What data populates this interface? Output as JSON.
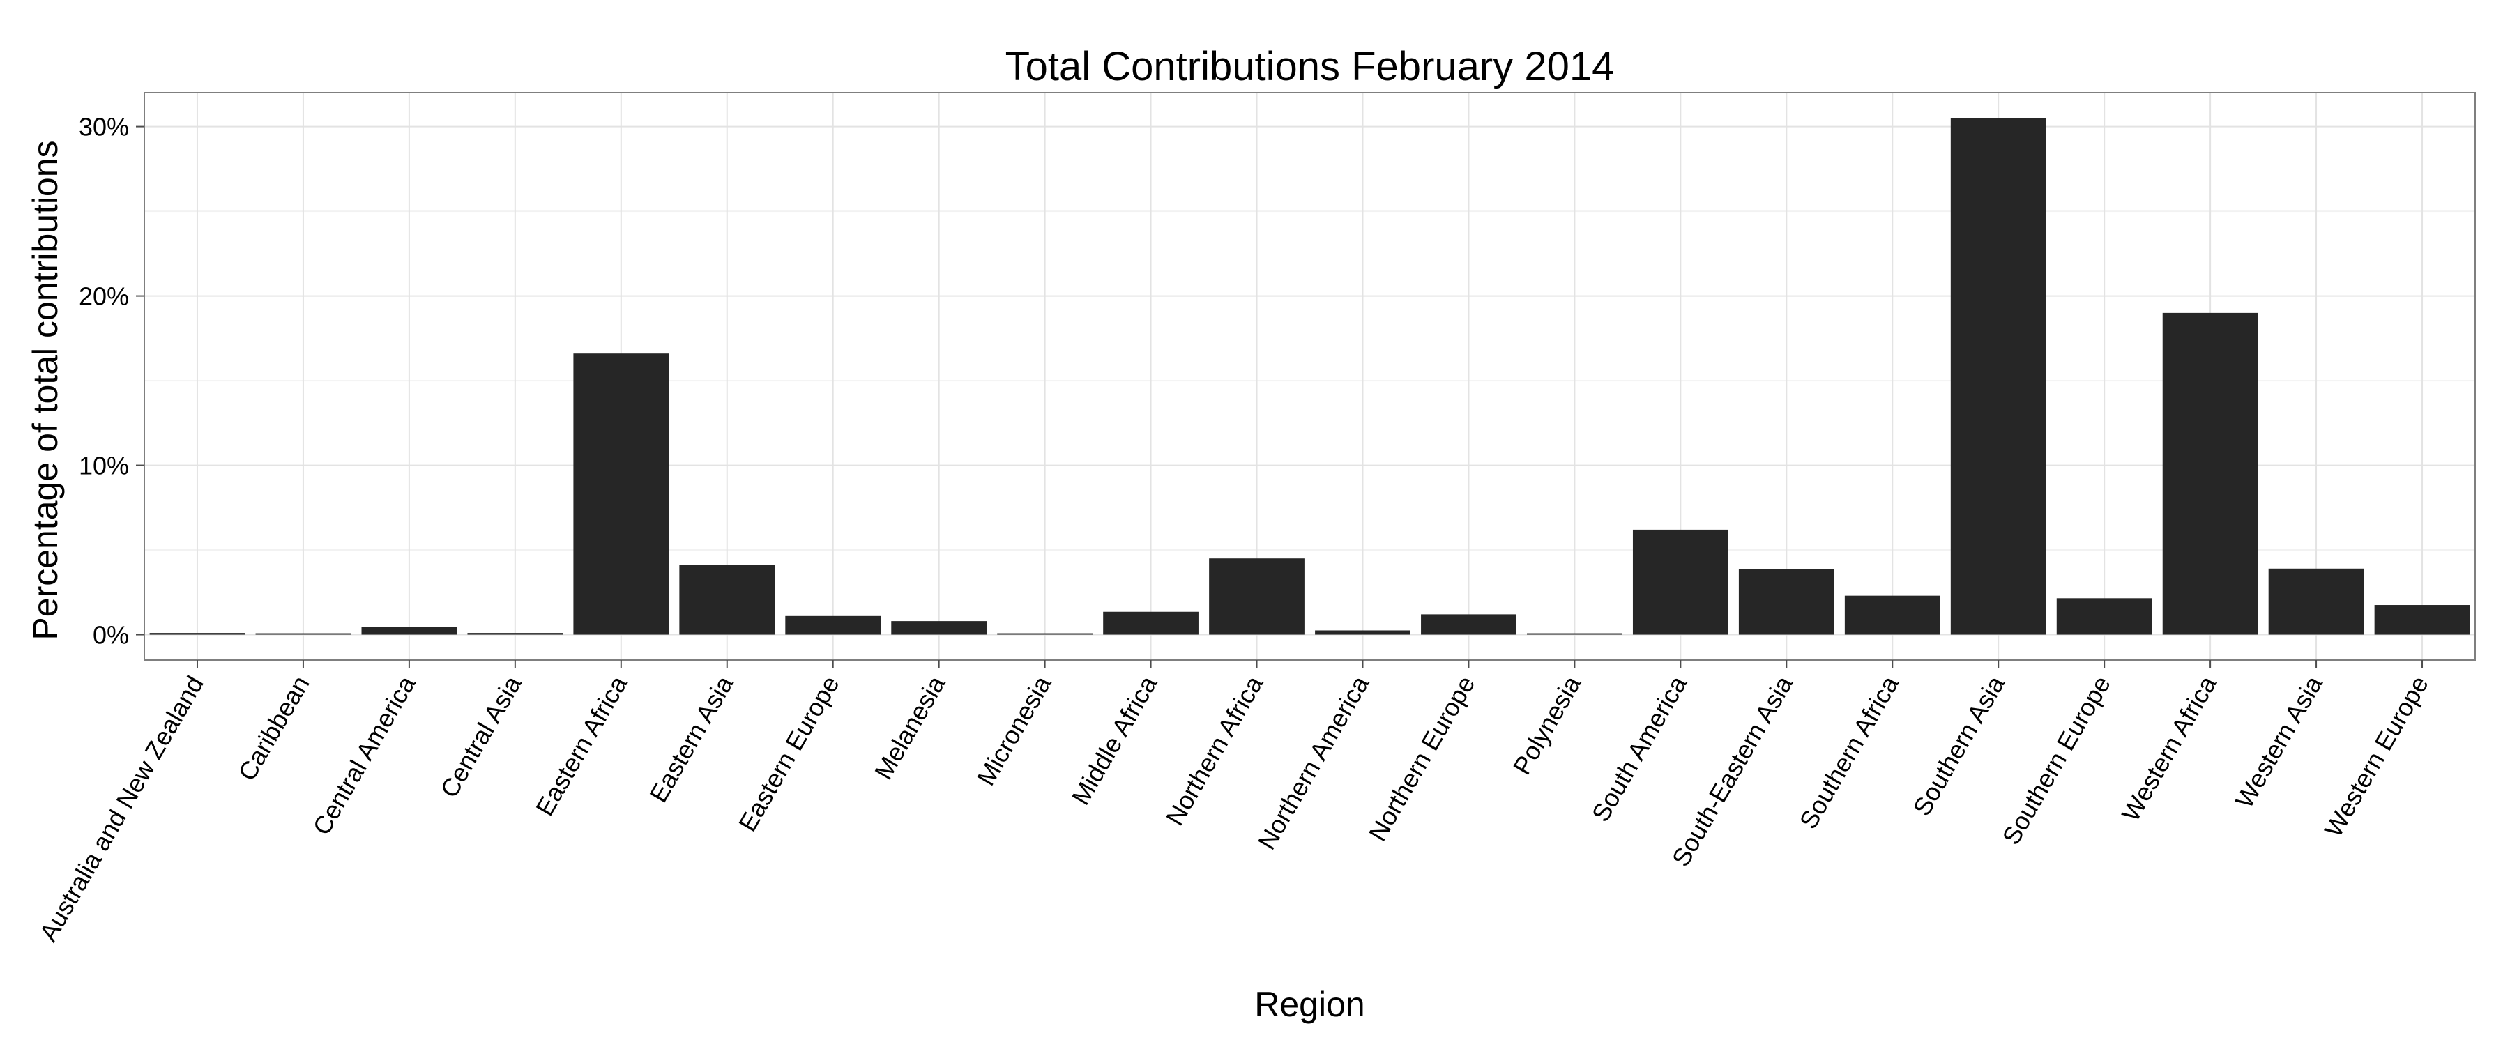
{
  "chart_data": {
    "type": "bar",
    "title": "Total Contributions February 2014",
    "xlabel": "Region",
    "ylabel": "Percentage of total contributions",
    "ylim": [
      -1.5,
      32
    ],
    "yticks": [
      0,
      10,
      20,
      30
    ],
    "ytick_labels": [
      "0%",
      "10%",
      "20%",
      "30%"
    ],
    "grid": true,
    "legend": "none",
    "bar_color": "#262626",
    "categories": [
      "Australia and New Zealand",
      "Caribbean",
      "Central America",
      "Central Asia",
      "Eastern Africa",
      "Eastern Asia",
      "Eastern Europe",
      "Melanesia",
      "Micronesia",
      "Middle Africa",
      "Northern Africa",
      "Northern America",
      "Northern Europe",
      "Polynesia",
      "South America",
      "South-Eastern Asia",
      "Southern Africa",
      "Southern Asia",
      "Southern Europe",
      "Western Africa",
      "Western Asia",
      "Western Europe"
    ],
    "values": [
      0.1,
      0.05,
      0.45,
      0.1,
      16.6,
      4.1,
      1.1,
      0.8,
      0.05,
      1.35,
      4.5,
      0.25,
      1.2,
      0.05,
      6.2,
      3.85,
      2.3,
      30.5,
      2.15,
      19.0,
      3.9,
      1.75
    ]
  }
}
